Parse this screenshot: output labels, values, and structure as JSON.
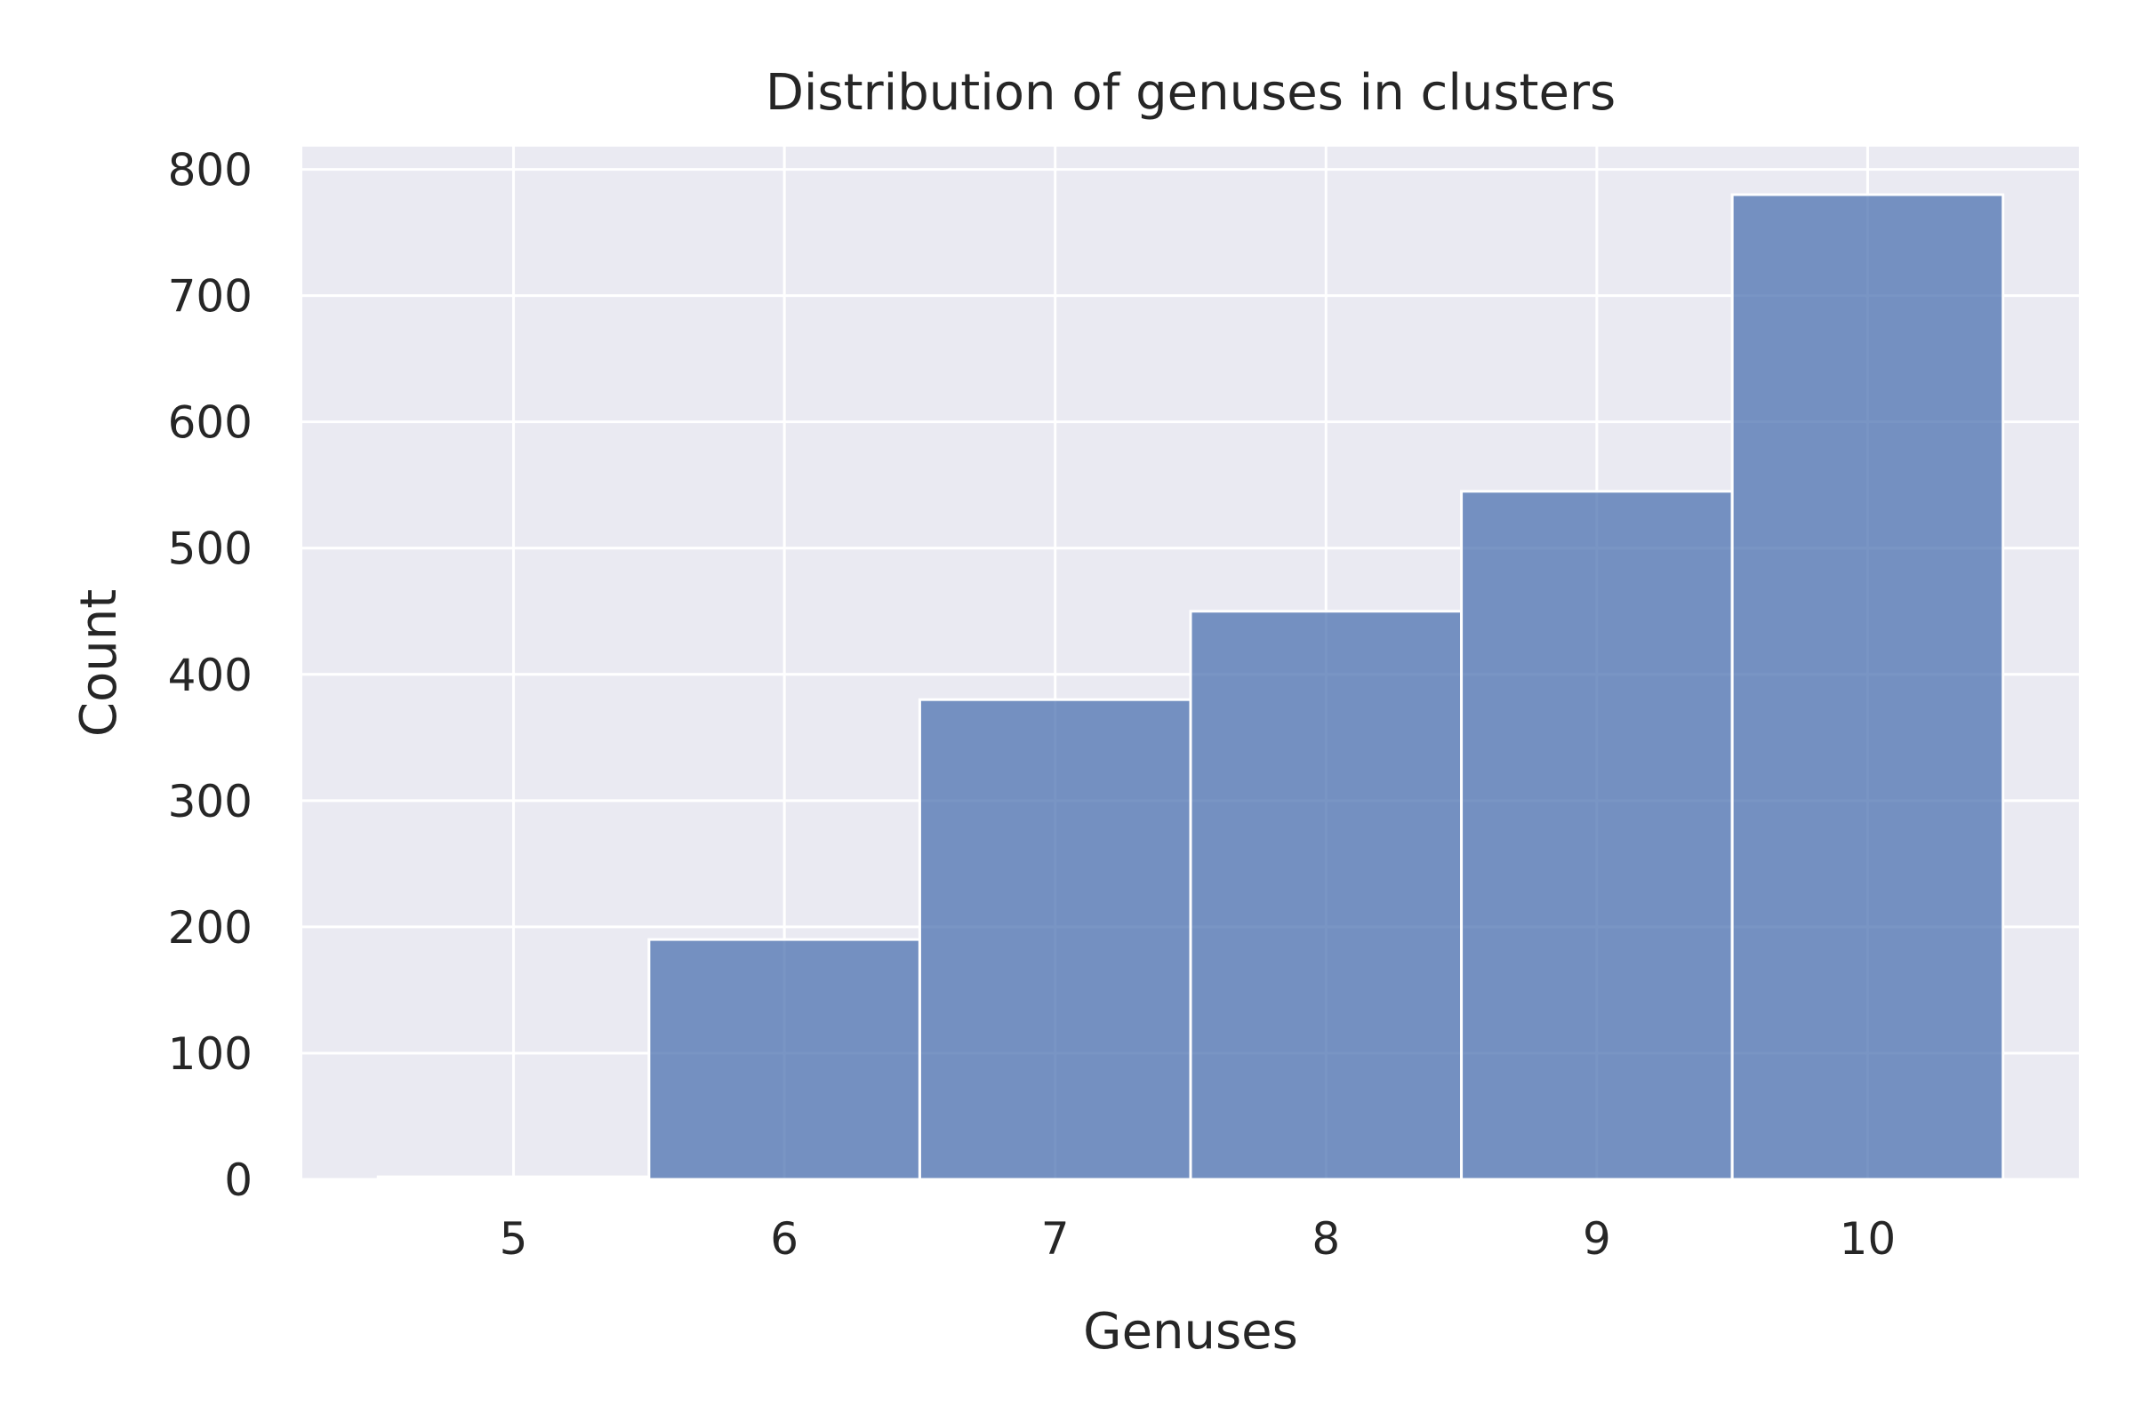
{
  "chart_data": {
    "type": "bar",
    "title": "Distribution of genuses in clusters",
    "xlabel": "Genuses",
    "ylabel": "Count",
    "categories": [
      "5",
      "6",
      "7",
      "8",
      "9",
      "10"
    ],
    "x": [
      5,
      6,
      7,
      8,
      9,
      10
    ],
    "values": [
      2,
      190,
      380,
      450,
      545,
      780
    ],
    "xlim": [
      4.22,
      10.78
    ],
    "ylim": [
      0,
      818
    ],
    "yticks": [
      0,
      100,
      200,
      300,
      400,
      500,
      600,
      700,
      800
    ],
    "grid": true,
    "legend": "none",
    "colors": {
      "bar": "#4c72b0",
      "plot_background": "#eaeaf2",
      "grid": "#ffffff"
    }
  }
}
